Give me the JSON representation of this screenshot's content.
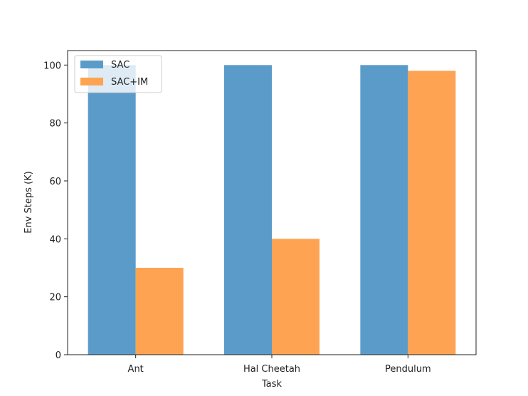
{
  "chart_data": {
    "type": "bar",
    "title": "",
    "xlabel": "Task",
    "ylabel": "Env Steps (K)",
    "categories": [
      "Ant",
      "Hal Cheetah",
      "Pendulum"
    ],
    "series": [
      {
        "name": "SAC",
        "values": [
          100,
          100,
          100
        ],
        "color": "#5b9bc9"
      },
      {
        "name": "SAC+IM",
        "values": [
          30,
          40,
          98
        ],
        "color": "#fda352"
      }
    ],
    "ylim": [
      0,
      105
    ],
    "yticks": [
      0,
      20,
      40,
      60,
      80,
      100
    ],
    "grid": false,
    "legend_position": "top-left"
  }
}
